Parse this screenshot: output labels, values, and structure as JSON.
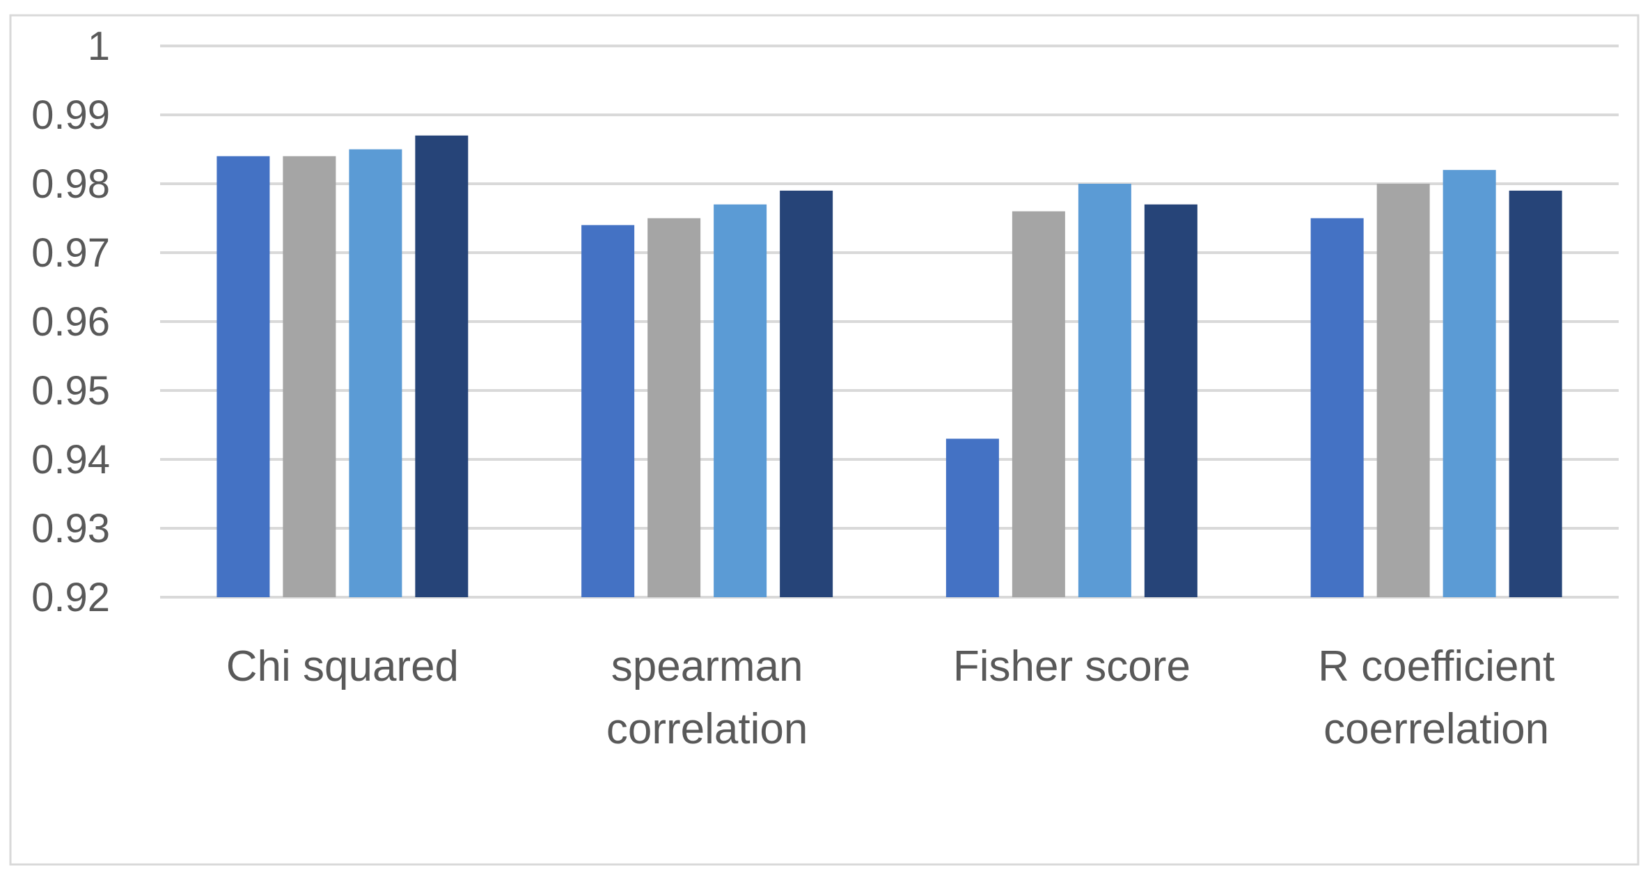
{
  "chart_data": {
    "type": "bar",
    "categories": [
      [
        "Chi squared"
      ],
      [
        "spearman",
        "correlation"
      ],
      [
        "Fisher score"
      ],
      [
        "R coefficient",
        "coerrelation"
      ]
    ],
    "series": [
      {
        "values": [
          0.984,
          0.974,
          0.943,
          0.975
        ],
        "color": "#4472C4"
      },
      {
        "values": [
          0.984,
          0.975,
          0.976,
          0.98
        ],
        "color": "#A5A5A5"
      },
      {
        "values": [
          0.985,
          0.977,
          0.98,
          0.982
        ],
        "color": "#5B9BD5"
      },
      {
        "values": [
          0.987,
          0.979,
          0.977,
          0.979
        ],
        "color": "#264478"
      }
    ],
    "y_ticks": [
      "0.92",
      "0.93",
      "0.94",
      "0.95",
      "0.96",
      "0.97",
      "0.98",
      "0.99",
      "1"
    ],
    "ylim": [
      0.92,
      1.0
    ],
    "grid": true,
    "legend": "none",
    "title": "",
    "xlabel": "",
    "ylabel": "",
    "gridline_color": "#D9D9D9",
    "frame_color": "#D9D9D9",
    "text_color": "#595959"
  }
}
